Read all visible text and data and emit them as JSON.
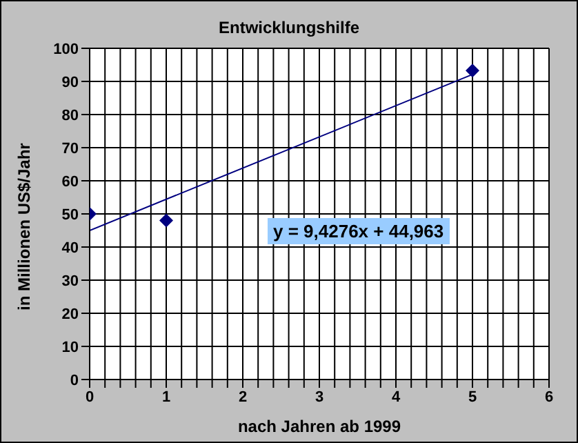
{
  "chart_data": {
    "type": "scatter",
    "title": "Entwicklungshilfe",
    "xlabel": "nach Jahren ab 1999",
    "ylabel": "in Millionen US$/Jahr",
    "series": [
      {
        "color": "#000080",
        "x": [
          0,
          1,
          5
        ],
        "values": [
          50,
          48,
          93.3
        ],
        "marker": "diamond"
      },
      {
        "type": "line",
        "color": "#000080",
        "x": [
          0,
          5
        ],
        "values": [
          45,
          92.1
        ],
        "marker": "none"
      }
    ],
    "xlim": [
      0,
      6
    ],
    "xticks": [
      0,
      {
        "value": 0.2,
        "label": null
      },
      {
        "value": 0.4,
        "label": null
      },
      {
        "value": 0.6,
        "label": null
      },
      {
        "value": 0.8,
        "label": null
      },
      1,
      {
        "value": 1.2,
        "label": null
      },
      {
        "value": 1.4,
        "label": null
      },
      {
        "value": 1.6,
        "label": null
      },
      {
        "value": 1.8,
        "label": null
      },
      2,
      {
        "value": 2.2,
        "label": null
      },
      {
        "value": 2.4,
        "label": null
      },
      {
        "value": 2.6,
        "label": null
      },
      {
        "value": 2.8,
        "label": null
      },
      3,
      {
        "value": 3.2,
        "label": null
      },
      {
        "value": 3.4,
        "label": null
      },
      {
        "value": 3.6,
        "label": null
      },
      {
        "value": 3.8,
        "label": null
      },
      4,
      {
        "value": 4.2,
        "label": null
      },
      {
        "value": 4.4,
        "label": null
      },
      {
        "value": 4.6,
        "label": null
      },
      {
        "value": 4.8,
        "label": null
      },
      5,
      {
        "value": 5.2,
        "label": null
      },
      {
        "value": 5.4,
        "label": null
      },
      {
        "value": 5.6,
        "label": null
      },
      {
        "value": 5.8,
        "label": null
      },
      6
    ],
    "ylim": [
      0,
      100
    ],
    "yticks": [
      0,
      10,
      20,
      30,
      40,
      50,
      60,
      70,
      80,
      90,
      100
    ],
    "grid": true,
    "legend": false,
    "annotations": [
      "y = 9,4276x + 44,963"
    ]
  }
}
